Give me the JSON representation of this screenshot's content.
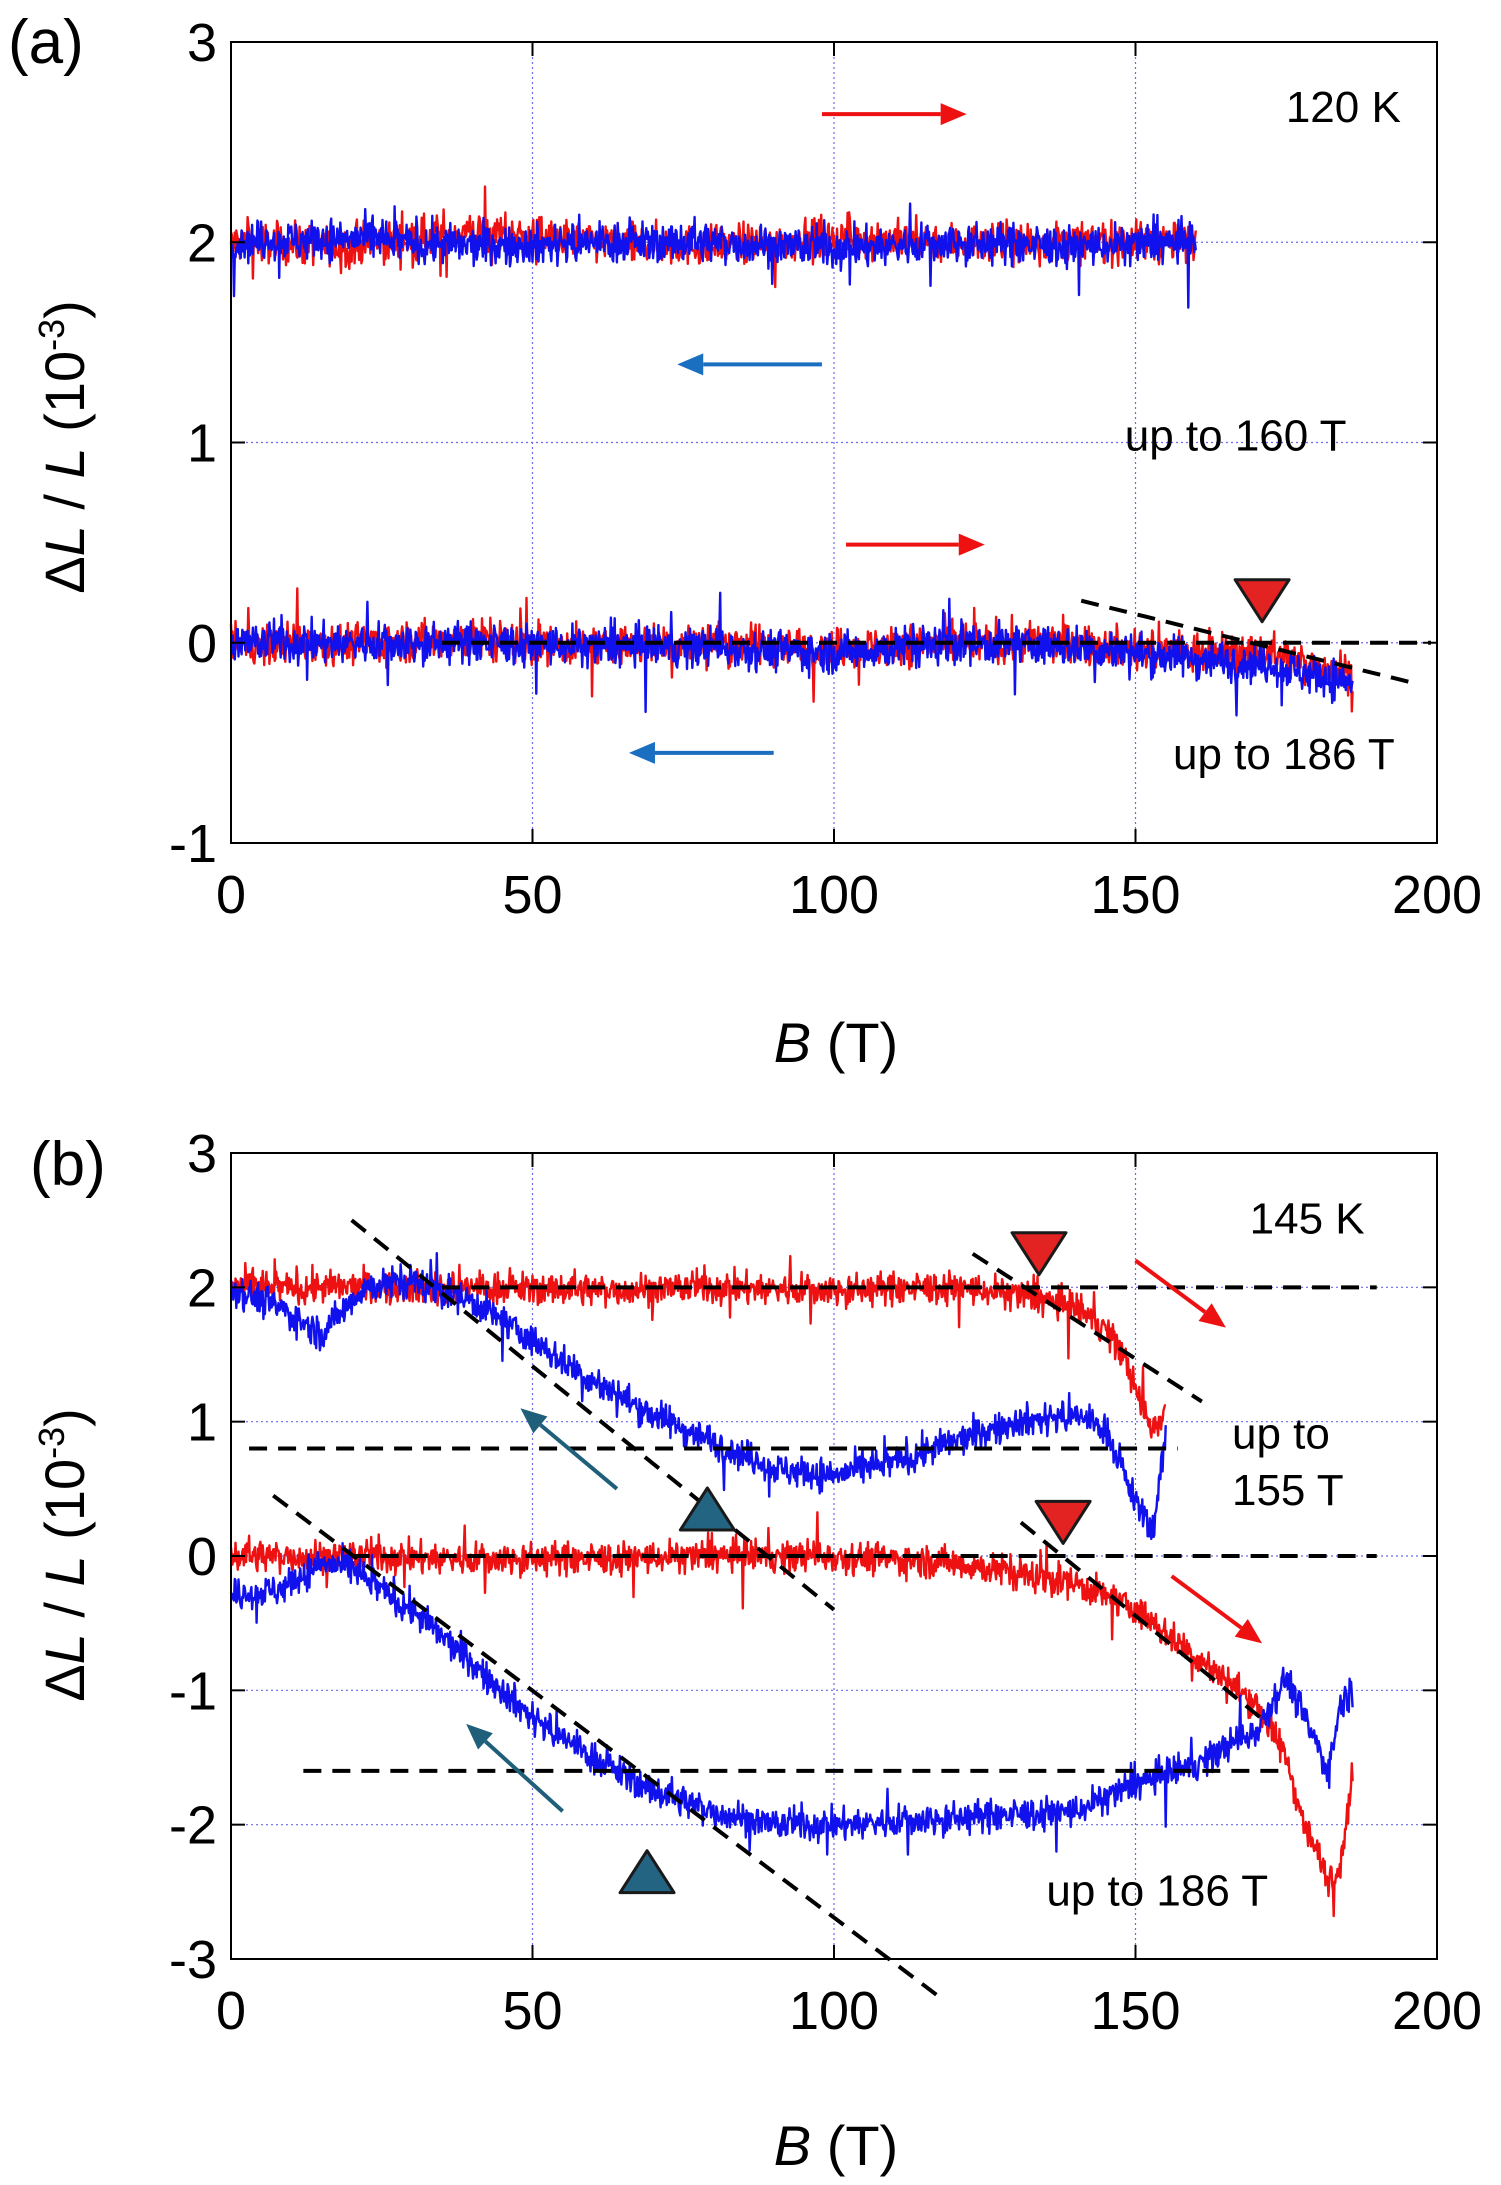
{
  "figure": {
    "colors": {
      "up_sweep": "#ee1111",
      "down_sweep": "#1111ee",
      "down_arrow_a": "#1a6fc0",
      "down_arrow_b": "#1f5f7a",
      "fit_line": "#000000",
      "grid": "#6a6aee",
      "marker_red": "#e32222",
      "marker_teal": "#236482"
    }
  },
  "chart_data": [
    {
      "panel": "(a)",
      "type": "line",
      "temperature_label": "120 K",
      "xlabel": {
        "var": "B",
        "unit": " (T)"
      },
      "ylabel": {
        "delta": "Δ",
        "var1": "L",
        "slash": " / ",
        "var2": "L",
        "unit_open": " (10",
        "exp": "-3",
        "unit_close": ")"
      },
      "xlim": [
        0,
        200
      ],
      "ylim": [
        -1,
        3
      ],
      "xticks": [
        "0",
        "50",
        "100",
        "150",
        "200"
      ],
      "yticks": [
        "-1",
        "0",
        "1",
        "2",
        "3"
      ],
      "grid": true,
      "noise": 0.1,
      "series": [
        {
          "name": "up to 160 T, up-sweep",
          "color": "up_sweep",
          "bmax": 160,
          "x": [
            0,
            20,
            40,
            60,
            80,
            100,
            120,
            140,
            160
          ],
          "y": [
            2.0,
            1.98,
            2.05,
            2.0,
            1.98,
            2.02,
            2.0,
            2.0,
            2.0
          ]
        },
        {
          "name": "up to 160 T, down-sweep",
          "color": "down_sweep",
          "bmax": 160,
          "x": [
            0,
            20,
            40,
            60,
            80,
            100,
            120,
            140,
            160
          ],
          "y": [
            2.0,
            2.02,
            1.98,
            2.0,
            2.0,
            1.97,
            2.0,
            1.98,
            2.0
          ]
        },
        {
          "name": "up to 186 T, up-sweep",
          "color": "up_sweep",
          "bmax": 186,
          "x": [
            0,
            20,
            40,
            60,
            80,
            100,
            120,
            140,
            160,
            170,
            186
          ],
          "y": [
            0.0,
            0.0,
            0.02,
            -0.02,
            0.0,
            -0.03,
            0.0,
            0.0,
            -0.05,
            -0.05,
            -0.15
          ]
        },
        {
          "name": "up to 186 T, down-sweep",
          "color": "down_sweep",
          "bmax": 186,
          "x": [
            0,
            20,
            40,
            60,
            80,
            100,
            120,
            140,
            160,
            170,
            186
          ],
          "y": [
            0.0,
            0.0,
            0.0,
            -0.02,
            -0.02,
            -0.05,
            0.0,
            -0.02,
            -0.08,
            -0.1,
            -0.2
          ]
        }
      ],
      "fit_lines": [
        {
          "x": [
            35,
            199
          ],
          "y": [
            0.0,
            0.0
          ]
        },
        {
          "x": [
            141,
            196
          ],
          "y": [
            0.21,
            -0.2
          ]
        }
      ],
      "markers": [
        {
          "type": "down",
          "color": "marker_red",
          "x": 171,
          "y": 0.21
        }
      ],
      "arrows": [
        {
          "color": "up_sweep",
          "x1": 98,
          "y1": 2.64,
          "x2": 122,
          "y2": 2.64
        },
        {
          "color": "down_arrow_a",
          "x1": 98,
          "y1": 1.39,
          "x2": 74,
          "y2": 1.39
        },
        {
          "color": "up_sweep",
          "x1": 102,
          "y1": 0.49,
          "x2": 125,
          "y2": 0.49
        },
        {
          "color": "down_arrow_a",
          "x1": 90,
          "y1": -0.55,
          "x2": 66,
          "y2": -0.55
        }
      ],
      "annotations": [
        {
          "text": "120 K",
          "x": 194,
          "y": 2.6,
          "anchor": "end"
        },
        {
          "text": "up to 160 T",
          "x": 185,
          "y": 0.96,
          "anchor": "end"
        },
        {
          "text": "up to 186 T",
          "x": 193,
          "y": -0.63,
          "anchor": "end"
        }
      ]
    },
    {
      "panel": "(b)",
      "type": "line",
      "temperature_label": "145 K",
      "xlabel": {
        "var": "B",
        "unit": " (T)"
      },
      "ylabel": {
        "delta": "Δ",
        "var1": "L",
        "slash": " / ",
        "var2": "L",
        "unit_open": " (10",
        "exp": "-3",
        "unit_close": ")"
      },
      "xlim": [
        0,
        200
      ],
      "ylim": [
        -3,
        3
      ],
      "xticks": [
        "0",
        "50",
        "100",
        "150",
        "200"
      ],
      "yticks": [
        "-3",
        "-2",
        "-1",
        "0",
        "1",
        "2",
        "3"
      ],
      "grid": true,
      "noise": 0.12,
      "series": [
        {
          "name": "up to 155 T, up-sweep",
          "color": "up_sweep",
          "bmax": 155,
          "x": [
            0,
            20,
            40,
            60,
            80,
            100,
            120,
            130,
            140,
            145,
            148,
            151,
            153,
            155
          ],
          "y": [
            2.0,
            2.0,
            2.0,
            1.98,
            2.0,
            1.98,
            2.0,
            1.95,
            1.85,
            1.7,
            1.5,
            1.1,
            0.95,
            1.1
          ]
        },
        {
          "name": "up to 155 T, down-sweep",
          "color": "down_sweep",
          "bmax": 155,
          "x": [
            0,
            8,
            15,
            22,
            30,
            40,
            50,
            60,
            70,
            80,
            90,
            100,
            110,
            120,
            130,
            140,
            145,
            150,
            153,
            155
          ],
          "y": [
            2.0,
            1.85,
            1.65,
            2.0,
            2.05,
            1.9,
            1.6,
            1.3,
            1.05,
            0.85,
            0.65,
            0.6,
            0.7,
            0.85,
            1.0,
            1.05,
            0.95,
            0.4,
            0.2,
            0.9
          ]
        },
        {
          "name": "up to 186 T, up-sweep",
          "color": "up_sweep",
          "bmax": 186,
          "x": [
            0,
            20,
            40,
            60,
            80,
            100,
            120,
            140,
            150,
            160,
            170,
            175,
            178,
            182,
            184,
            186
          ],
          "y": [
            0.0,
            0.0,
            -0.02,
            -0.02,
            0.0,
            0.0,
            -0.05,
            -0.2,
            -0.4,
            -0.75,
            -1.1,
            -1.5,
            -2.0,
            -2.4,
            -2.3,
            -1.6
          ]
        },
        {
          "name": "up to 186 T, down-sweep",
          "color": "down_sweep",
          "bmax": 186,
          "x": [
            0,
            8,
            15,
            20,
            30,
            40,
            50,
            60,
            70,
            80,
            90,
            100,
            120,
            140,
            150,
            160,
            170,
            175,
            178,
            182,
            184,
            186
          ],
          "y": [
            -0.3,
            -0.25,
            -0.05,
            -0.1,
            -0.4,
            -0.8,
            -1.2,
            -1.5,
            -1.75,
            -1.9,
            -2.0,
            -2.0,
            -1.95,
            -1.9,
            -1.7,
            -1.55,
            -1.3,
            -0.9,
            -1.2,
            -1.6,
            -1.1,
            -1.0
          ]
        }
      ],
      "fit_lines": [
        {
          "x": [
            35,
            190
          ],
          "y": [
            2.0,
            2.0
          ]
        },
        {
          "x": [
            3,
            157
          ],
          "y": [
            0.8,
            0.8
          ]
        },
        {
          "x": [
            20,
            190
          ],
          "y": [
            0.0,
            0.0
          ]
        },
        {
          "x": [
            12,
            175
          ],
          "y": [
            -1.6,
            -1.6
          ]
        },
        {
          "x": [
            20,
            100
          ],
          "y": [
            2.5,
            -0.4
          ]
        },
        {
          "x": [
            7,
            118
          ],
          "y": [
            0.45,
            -3.3
          ]
        },
        {
          "x": [
            123,
            161
          ],
          "y": [
            2.25,
            1.15
          ]
        },
        {
          "x": [
            131,
            172
          ],
          "y": [
            0.25,
            -1.25
          ]
        }
      ],
      "markers": [
        {
          "type": "down",
          "color": "marker_red",
          "x": 134,
          "y": 2.25
        },
        {
          "type": "down",
          "color": "marker_red",
          "x": 138,
          "y": 0.25
        },
        {
          "type": "up",
          "color": "marker_teal",
          "x": 79,
          "y": 0.35
        },
        {
          "type": "up",
          "color": "marker_teal",
          "x": 69,
          "y": -2.35
        }
      ],
      "arrows": [
        {
          "color": "up_sweep",
          "x1": 150,
          "y1": 2.2,
          "x2": 165,
          "y2": 1.7
        },
        {
          "color": "down_arrow_b",
          "x1": 64,
          "y1": 0.5,
          "x2": 48,
          "y2": 1.1
        },
        {
          "color": "up_sweep",
          "x1": 156,
          "y1": -0.15,
          "x2": 171,
          "y2": -0.65
        },
        {
          "color": "down_arrow_b",
          "x1": 55,
          "y1": -1.9,
          "x2": 39,
          "y2": -1.25
        }
      ],
      "annotations": [
        {
          "text": "145 K",
          "x": 188,
          "y": 2.4,
          "anchor": "end"
        },
        {
          "text": "up to",
          "x": 166,
          "y": 0.8,
          "anchor": "start"
        },
        {
          "text": "155 T",
          "x": 166,
          "y": 0.38,
          "anchor": "start"
        },
        {
          "text": "up to 186 T",
          "x": 172,
          "y": -2.6,
          "anchor": "end"
        }
      ]
    }
  ]
}
